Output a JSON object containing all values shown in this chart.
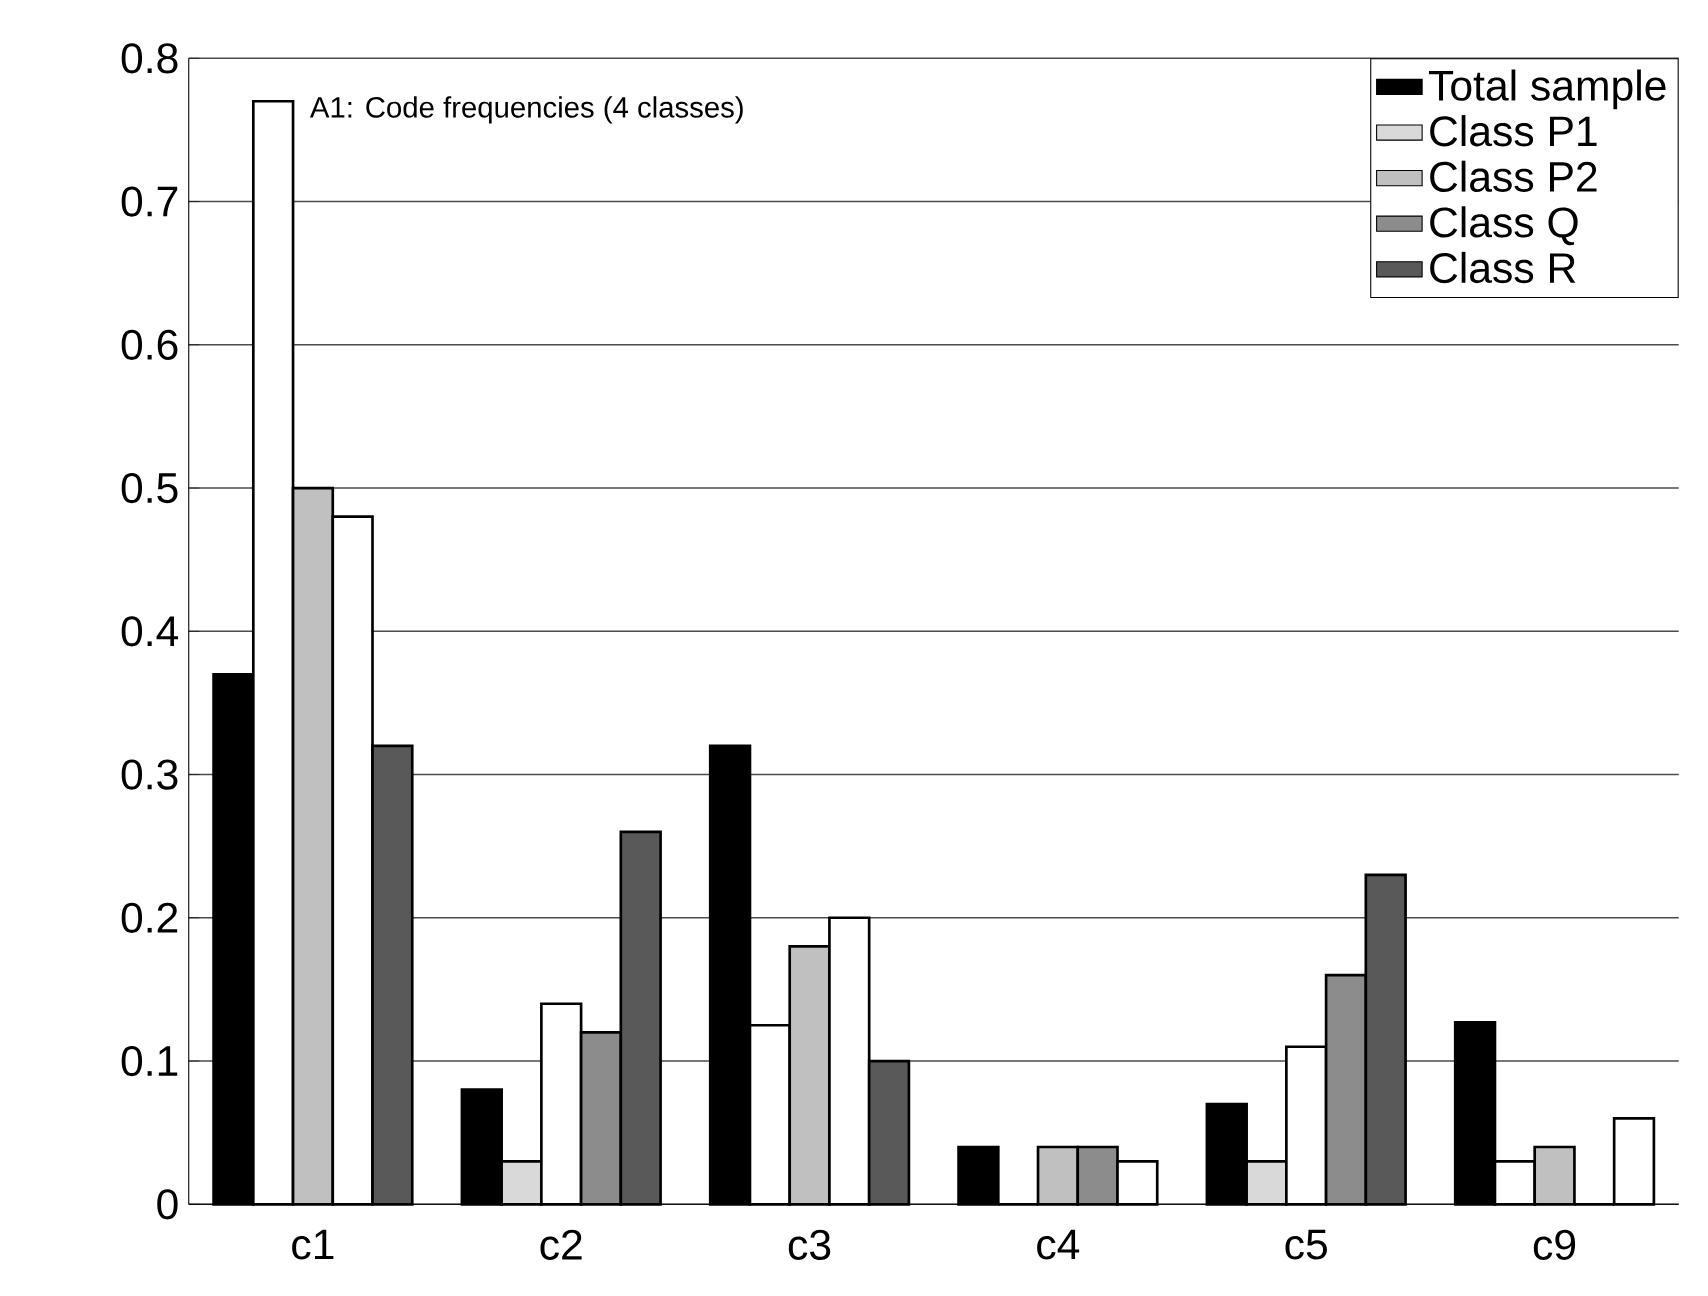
{
  "chart_data": {
    "type": "bar",
    "categories": [
      "c1",
      "c2",
      "c3",
      "c4",
      "c5",
      "c9"
    ],
    "series": [
      {
        "name": "Total sample",
        "color": "#000000",
        "values": [
          0.37,
          0.08,
          0.32,
          0.04,
          0.07,
          0.127
        ]
      },
      {
        "name": "Class P1",
        "color": "#d9d9d9",
        "colors": [
          "#ffffff",
          "#d9d9d9",
          "#ffffff",
          "#d9d9d9",
          "#d9d9d9",
          "#ffffff"
        ],
        "values": [
          0.77,
          0.03,
          0.125,
          0,
          0.03,
          0.03
        ]
      },
      {
        "name": "Class P2",
        "color": "#c0c0c0",
        "colors": [
          "#c0c0c0",
          "#ffffff",
          "#c0c0c0",
          "#c0c0c0",
          "#ffffff",
          "#c0c0c0"
        ],
        "values": [
          0.5,
          0.14,
          0.18,
          0.04,
          0.11,
          0.04
        ]
      },
      {
        "name": "Class Q",
        "color": "#8c8c8c",
        "colors": [
          "#ffffff",
          "#8c8c8c",
          "#ffffff",
          "#8c8c8c",
          "#8c8c8c",
          "#8c8c8c"
        ],
        "values": [
          0.48,
          0.12,
          0.2,
          0.04,
          0.16,
          0
        ]
      },
      {
        "name": "Class R",
        "color": "#595959",
        "colors": [
          "#595959",
          "#595959",
          "#595959",
          "#ffffff",
          "#595959",
          "#ffffff"
        ],
        "values": [
          0.32,
          0.26,
          0.1,
          0.03,
          0.23,
          0.06
        ]
      }
    ],
    "ylim": [
      0,
      0.8
    ],
    "yticks": [
      0,
      0.1,
      0.2,
      0.3,
      0.4,
      0.5,
      0.6,
      0.7,
      0.8
    ],
    "grid": "y",
    "legend": "top right",
    "annotations": [
      "A1: Code frequencies (4 classes)"
    ]
  }
}
